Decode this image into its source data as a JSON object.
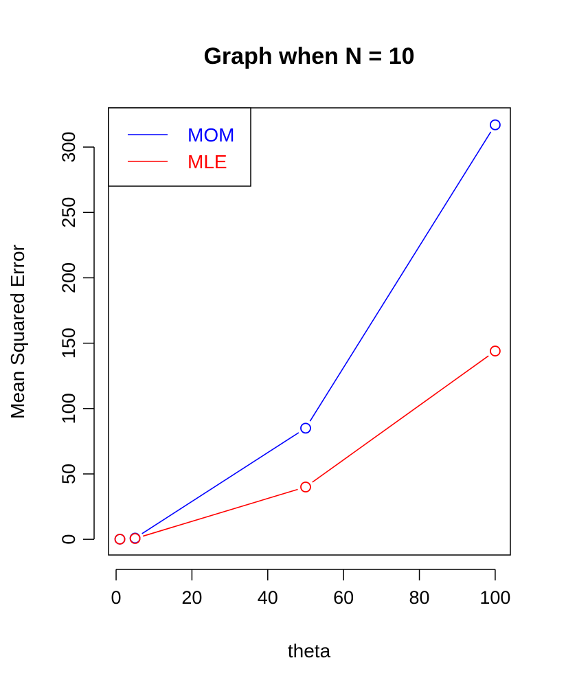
{
  "chart_data": {
    "type": "line",
    "title": "Graph when N = 10",
    "xlabel": "theta",
    "ylabel": "Mean Squared Error",
    "xlim": [
      -2,
      104
    ],
    "ylim": [
      -12,
      330
    ],
    "xticks": [
      0,
      20,
      40,
      60,
      80,
      100
    ],
    "yticks": [
      0,
      50,
      100,
      150,
      200,
      250,
      300
    ],
    "grid": false,
    "legend_position": "top-left",
    "x": [
      1,
      5,
      50,
      100
    ],
    "series": [
      {
        "name": "MOM",
        "color": "#0000ff",
        "values": [
          0.1,
          0.9,
          85,
          317
        ]
      },
      {
        "name": "MLE",
        "color": "#ff0000",
        "values": [
          0.1,
          0.6,
          40,
          144
        ]
      }
    ]
  }
}
